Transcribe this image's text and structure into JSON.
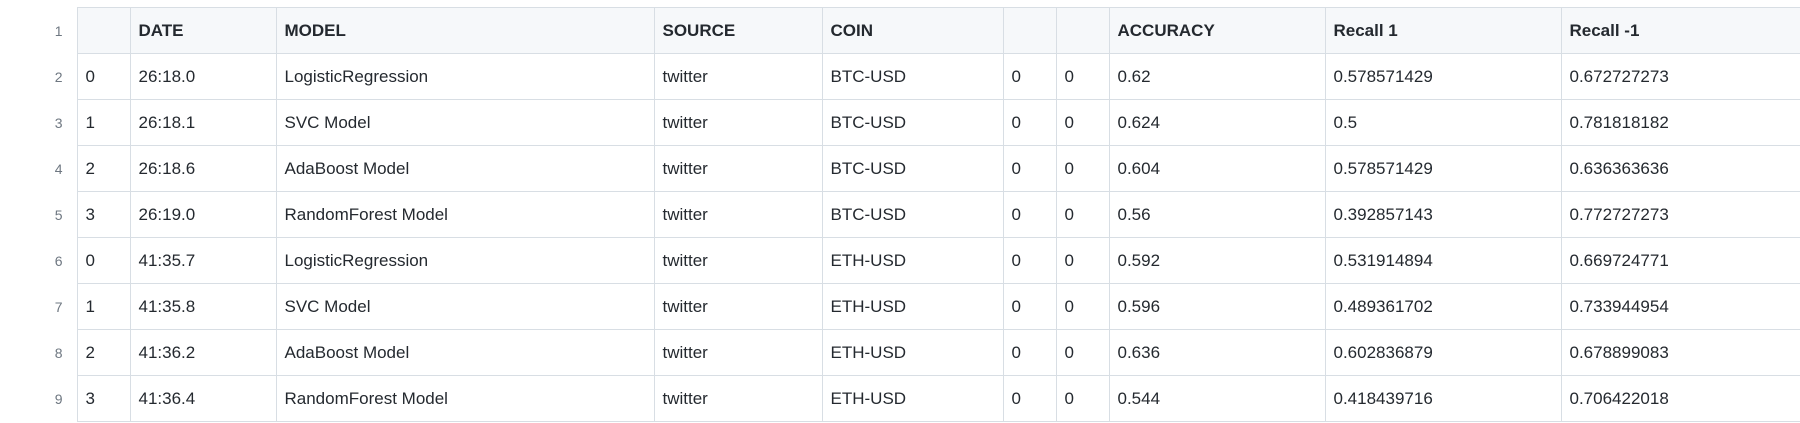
{
  "table": {
    "headers": [
      "",
      "DATE",
      "MODEL",
      "SOURCE",
      "COIN",
      "",
      "",
      "ACCURACY",
      "Recall 1",
      "Recall -1"
    ],
    "header_line_number": "1",
    "rows": [
      {
        "line": "2",
        "cells": [
          "0",
          "26:18.0",
          "LogisticRegression",
          "twitter",
          "BTC-USD",
          "0",
          "0",
          "0.62",
          "0.578571429",
          "0.672727273"
        ]
      },
      {
        "line": "3",
        "cells": [
          "1",
          "26:18.1",
          "SVC Model",
          "twitter",
          "BTC-USD",
          "0",
          "0",
          "0.624",
          "0.5",
          "0.781818182"
        ]
      },
      {
        "line": "4",
        "cells": [
          "2",
          "26:18.6",
          "AdaBoost Model",
          "twitter",
          "BTC-USD",
          "0",
          "0",
          "0.604",
          "0.578571429",
          "0.636363636"
        ]
      },
      {
        "line": "5",
        "cells": [
          "3",
          "26:19.0",
          "RandomForest Model",
          "twitter",
          "BTC-USD",
          "0",
          "0",
          "0.56",
          "0.392857143",
          "0.772727273"
        ]
      },
      {
        "line": "6",
        "cells": [
          "0",
          "41:35.7",
          "LogisticRegression",
          "twitter",
          "ETH-USD",
          "0",
          "0",
          "0.592",
          "0.531914894",
          "0.669724771"
        ]
      },
      {
        "line": "7",
        "cells": [
          "1",
          "41:35.8",
          "SVC Model",
          "twitter",
          "ETH-USD",
          "0",
          "0",
          "0.596",
          "0.489361702",
          "0.733944954"
        ]
      },
      {
        "line": "8",
        "cells": [
          "2",
          "41:36.2",
          "AdaBoost Model",
          "twitter",
          "ETH-USD",
          "0",
          "0",
          "0.636",
          "0.602836879",
          "0.678899083"
        ]
      },
      {
        "line": "9",
        "cells": [
          "3",
          "41:36.4",
          "RandomForest Model",
          "twitter",
          "ETH-USD",
          "0",
          "0",
          "0.544",
          "0.418439716",
          "0.706422018"
        ]
      }
    ]
  },
  "colors": {
    "border": "#d8dee4",
    "header_bg": "#f6f8fa",
    "line_number": "#6e7781",
    "text": "#24292f"
  }
}
